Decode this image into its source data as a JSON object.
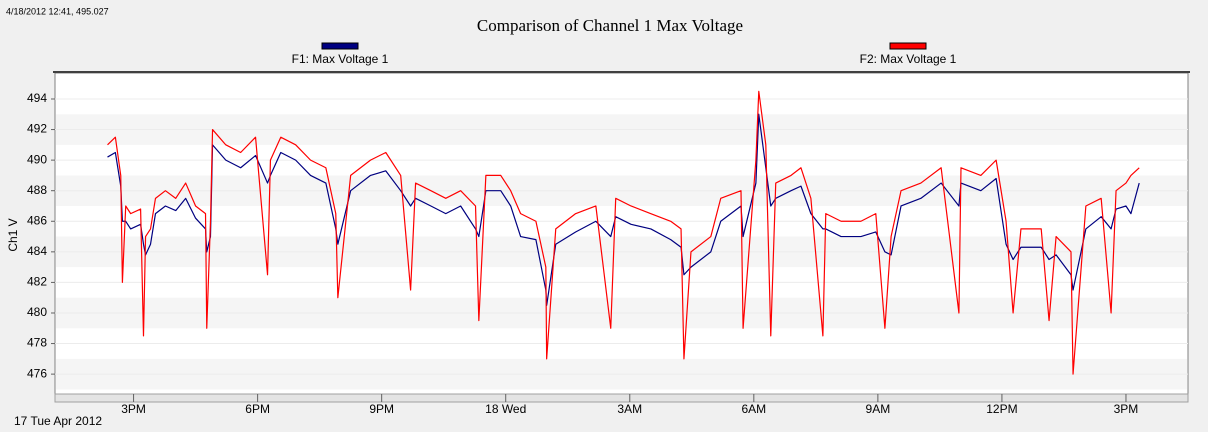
{
  "chart_data": {
    "type": "line",
    "title": "Comparison of Channel 1 Max Voltage",
    "cursor_readout": "4/18/2012 12:41, 495.027",
    "y_label": "Ch1 V",
    "date_label": "17 Tue Apr 2012",
    "x": [
      14.37,
      14.56,
      14.69,
      14.73,
      14.81,
      14.93,
      15.17,
      15.24,
      15.29,
      15.41,
      15.53,
      15.77,
      16.02,
      16.26,
      16.5,
      16.74,
      16.77,
      16.86,
      16.91,
      17.23,
      17.59,
      17.95,
      18.24,
      18.31,
      18.56,
      18.92,
      19.28,
      19.65,
      19.89,
      19.94,
      20.25,
      20.73,
      21.1,
      21.46,
      21.7,
      21.82,
      22.19,
      22.55,
      22.91,
      23.27,
      23.35,
      23.52,
      23.88,
      24.12,
      24.36,
      24.73,
      24.97,
      24.99,
      25.21,
      25.69,
      26.18,
      26.54,
      26.66,
      27.03,
      27.51,
      27.99,
      28.24,
      28.31,
      28.48,
      28.96,
      29.2,
      29.69,
      29.74,
      30.05,
      30.12,
      30.29,
      30.41,
      30.53,
      30.9,
      31.14,
      31.38,
      31.67,
      31.74,
      32.11,
      32.59,
      32.95,
      33.17,
      33.32,
      33.56,
      34.04,
      34.53,
      34.96,
      35.01,
      35.49,
      35.86,
      36.1,
      36.27,
      36.46,
      36.95,
      37.14,
      37.31,
      37.67,
      37.72,
      38.03,
      38.4,
      38.64,
      38.76,
      39.0,
      39.12,
      39.32
    ],
    "series": [
      {
        "name": "F1: Max Voltage 1",
        "color": "#000080",
        "values": [
          490.2,
          490.5,
          488.3,
          486.0,
          486.0,
          485.5,
          485.8,
          484.5,
          483.8,
          484.5,
          486.5,
          487.0,
          486.7,
          487.5,
          486.2,
          485.5,
          484.0,
          485.0,
          491.0,
          490.0,
          489.5,
          490.3,
          488.5,
          489.0,
          490.5,
          490.0,
          489.0,
          488.5,
          485.5,
          484.5,
          488.0,
          489.0,
          489.3,
          488.0,
          487.0,
          487.5,
          487.0,
          486.5,
          487.0,
          485.5,
          485.0,
          488.0,
          488.0,
          487.0,
          485.0,
          484.8,
          481.5,
          480.5,
          484.5,
          485.3,
          486.0,
          485.0,
          486.3,
          485.8,
          485.5,
          484.8,
          484.3,
          482.5,
          483.0,
          484.0,
          486.0,
          487.0,
          485.0,
          488.5,
          493.0,
          489.5,
          487.0,
          487.5,
          488.0,
          488.3,
          486.5,
          485.5,
          485.5,
          485.0,
          485.0,
          485.3,
          484.0,
          483.8,
          487.0,
          487.5,
          488.5,
          487.0,
          488.5,
          488.0,
          488.8,
          484.5,
          483.5,
          484.3,
          484.3,
          483.5,
          483.8,
          482.5,
          481.5,
          485.5,
          486.3,
          485.5,
          486.8,
          487.0,
          486.5,
          488.5
        ]
      },
      {
        "name": "F2: Max Voltage 1",
        "color": "#ff0000",
        "values": [
          491.0,
          491.5,
          489.0,
          482.0,
          487.0,
          486.5,
          486.8,
          478.5,
          485.0,
          485.5,
          487.5,
          488.0,
          487.5,
          488.5,
          487.0,
          486.5,
          479.0,
          486.0,
          492.0,
          491.0,
          490.5,
          491.5,
          482.5,
          490.0,
          491.5,
          491.0,
          490.0,
          489.5,
          486.5,
          481.0,
          489.0,
          490.0,
          490.5,
          489.0,
          481.5,
          488.5,
          488.0,
          487.5,
          488.0,
          487.0,
          479.5,
          489.0,
          489.0,
          488.0,
          486.5,
          486.0,
          483.0,
          477.0,
          485.5,
          486.5,
          487.0,
          479.0,
          487.5,
          487.0,
          486.5,
          486.0,
          485.5,
          477.0,
          484.0,
          485.0,
          487.5,
          488.0,
          479.0,
          490.0,
          494.5,
          491.0,
          478.5,
          488.5,
          489.0,
          489.5,
          487.5,
          478.5,
          486.5,
          486.0,
          486.0,
          486.5,
          479.0,
          485.0,
          488.0,
          488.5,
          489.5,
          480.0,
          489.5,
          489.0,
          490.0,
          486.0,
          480.0,
          485.5,
          485.5,
          479.5,
          485.0,
          484.0,
          476.0,
          487.0,
          487.5,
          480.0,
          488.0,
          488.5,
          489.0,
          489.5
        ]
      }
    ],
    "xlim": [
      13.1,
      40.5
    ],
    "xticks": [
      {
        "value": 15,
        "label": "3PM"
      },
      {
        "value": 18,
        "label": "6PM"
      },
      {
        "value": 21,
        "label": "9PM"
      },
      {
        "value": 24,
        "label": "18 Wed"
      },
      {
        "value": 27,
        "label": "3AM"
      },
      {
        "value": 30,
        "label": "6AM"
      },
      {
        "value": 33,
        "label": "9AM"
      },
      {
        "value": 36,
        "label": "12PM"
      },
      {
        "value": 39,
        "label": "3PM"
      }
    ],
    "ylim": [
      474.7,
      495.7
    ],
    "yticks": [
      476,
      478,
      480,
      482,
      484,
      486,
      488,
      490,
      492,
      494
    ],
    "grid": true
  }
}
